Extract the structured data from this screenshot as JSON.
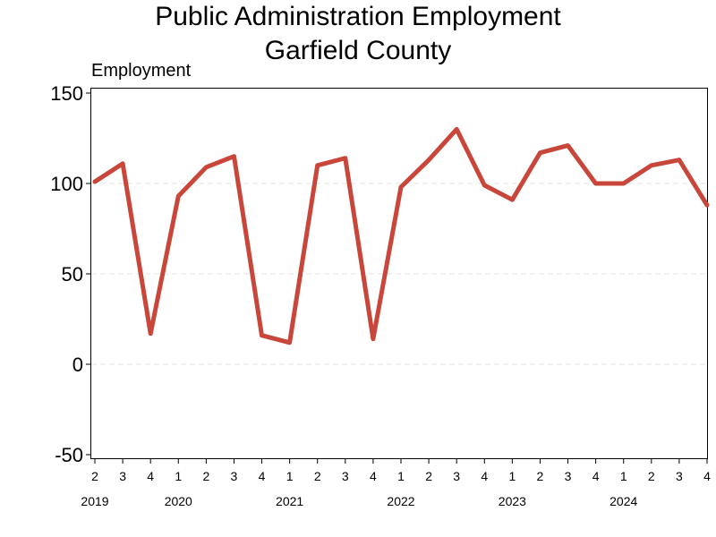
{
  "chart_data": {
    "type": "line",
    "title": "Public Administration Employment",
    "subtitle": "Garfield County",
    "ylabel": "Employment",
    "xlabel": "",
    "ylim": [
      -50,
      150
    ],
    "yticks": [
      "150",
      "100",
      "50",
      "0",
      "-50"
    ],
    "yticks_values": [
      150,
      100,
      50,
      0,
      -50
    ],
    "grid": true,
    "legend": "none",
    "x_quarter_labels": [
      "2",
      "3",
      "4",
      "1",
      "2",
      "3",
      "4",
      "1",
      "2",
      "3",
      "4",
      "1",
      "2",
      "3",
      "4",
      "1",
      "2",
      "3",
      "4",
      "1",
      "2",
      "3",
      "4"
    ],
    "x_year_labels": [
      {
        "label": "2019",
        "index": 0
      },
      {
        "label": "2020",
        "index": 3
      },
      {
        "label": "2021",
        "index": 7
      },
      {
        "label": "2022",
        "index": 11
      },
      {
        "label": "2023",
        "index": 15
      },
      {
        "label": "2024",
        "index": 19
      }
    ],
    "series": [
      {
        "color": "#c8463a",
        "x": [
          "2019 Q2",
          "2019 Q3",
          "2019 Q4",
          "2020 Q1",
          "2020 Q2",
          "2020 Q3",
          "2020 Q4",
          "2021 Q1",
          "2021 Q2",
          "2021 Q3",
          "2021 Q4",
          "2022 Q1",
          "2022 Q2",
          "2022 Q3",
          "2022 Q4",
          "2023 Q1",
          "2023 Q2",
          "2023 Q3",
          "2023 Q4",
          "2024 Q1",
          "2024 Q2",
          "2024 Q3",
          "2024 Q4"
        ],
        "values": [
          101,
          111,
          17,
          93,
          109,
          115,
          16,
          12,
          110,
          114,
          14,
          98,
          113,
          130,
          99,
          91,
          117,
          121,
          100,
          100,
          110,
          113,
          88
        ]
      }
    ]
  }
}
